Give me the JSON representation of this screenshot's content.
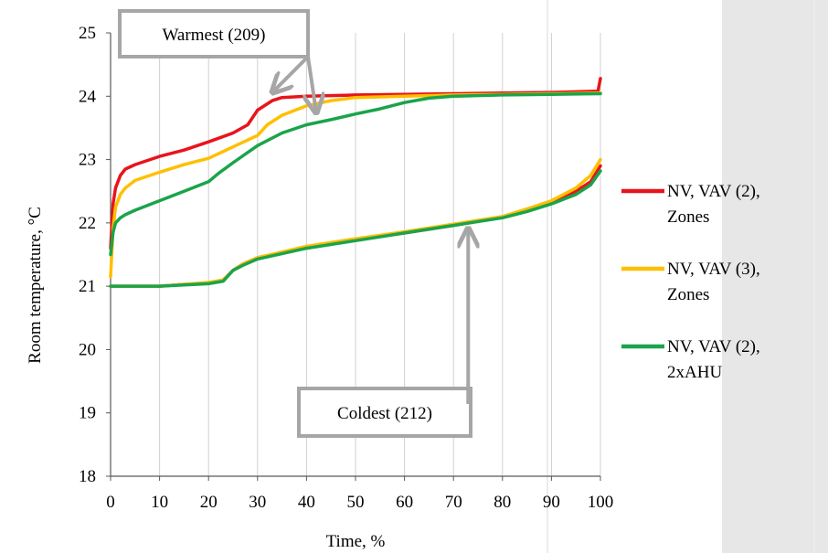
{
  "chart_data": {
    "type": "line",
    "xlabel": "Time, %",
    "ylabel": "Room temperature, °C",
    "xlim": [
      0,
      100
    ],
    "ylim": [
      18,
      25
    ],
    "xticks": [
      0,
      10,
      20,
      30,
      40,
      50,
      60,
      70,
      80,
      90,
      100
    ],
    "yticks": [
      18,
      19,
      20,
      21,
      22,
      23,
      24,
      25
    ],
    "grid": "vertical",
    "legend_position": "right",
    "series": [
      {
        "name": "NV, VAV (2), Zones",
        "color": "#e8141b",
        "groups": [
          [
            [
              0,
              21.6
            ],
            [
              0.5,
              22.3
            ],
            [
              1,
              22.55
            ],
            [
              2,
              22.75
            ],
            [
              3,
              22.85
            ],
            [
              5,
              22.92
            ],
            [
              10,
              23.05
            ],
            [
              15,
              23.15
            ],
            [
              20,
              23.28
            ],
            [
              25,
              23.42
            ],
            [
              28,
              23.55
            ],
            [
              30,
              23.78
            ],
            [
              33,
              23.93
            ],
            [
              35,
              23.98
            ],
            [
              40,
              24.0
            ],
            [
              50,
              24.02
            ],
            [
              60,
              24.03
            ],
            [
              70,
              24.04
            ],
            [
              80,
              24.05
            ],
            [
              90,
              24.06
            ],
            [
              99.5,
              24.08
            ],
            [
              100,
              24.28
            ]
          ],
          [
            [
              0,
              21.0
            ],
            [
              10,
              21.0
            ],
            [
              15,
              21.03
            ],
            [
              20,
              21.05
            ],
            [
              23,
              21.1
            ],
            [
              25,
              21.25
            ],
            [
              27,
              21.35
            ],
            [
              30,
              21.45
            ],
            [
              40,
              21.62
            ],
            [
              50,
              21.73
            ],
            [
              60,
              21.84
            ],
            [
              70,
              21.96
            ],
            [
              80,
              22.09
            ],
            [
              85,
              22.2
            ],
            [
              90,
              22.33
            ],
            [
              95,
              22.5
            ],
            [
              98,
              22.65
            ],
            [
              100,
              22.9
            ]
          ]
        ]
      },
      {
        "name": "NV, VAV (3), Zones",
        "color": "#ffbf00",
        "groups": [
          [
            [
              0,
              21.15
            ],
            [
              0.5,
              21.9
            ],
            [
              1,
              22.25
            ],
            [
              2,
              22.45
            ],
            [
              3,
              22.55
            ],
            [
              5,
              22.67
            ],
            [
              10,
              22.8
            ],
            [
              15,
              22.92
            ],
            [
              20,
              23.02
            ],
            [
              25,
              23.2
            ],
            [
              30,
              23.38
            ],
            [
              32,
              23.55
            ],
            [
              35,
              23.7
            ],
            [
              40,
              23.85
            ],
            [
              45,
              23.93
            ],
            [
              50,
              23.98
            ],
            [
              60,
              24.0
            ],
            [
              70,
              24.02
            ],
            [
              80,
              24.03
            ],
            [
              90,
              24.04
            ],
            [
              100,
              24.05
            ]
          ],
          [
            [
              0,
              21.0
            ],
            [
              10,
              21.0
            ],
            [
              15,
              21.03
            ],
            [
              20,
              21.06
            ],
            [
              23,
              21.1
            ],
            [
              25,
              21.25
            ],
            [
              27,
              21.35
            ],
            [
              30,
              21.45
            ],
            [
              40,
              21.63
            ],
            [
              50,
              21.75
            ],
            [
              60,
              21.86
            ],
            [
              70,
              21.98
            ],
            [
              80,
              22.1
            ],
            [
              85,
              22.22
            ],
            [
              90,
              22.35
            ],
            [
              95,
              22.55
            ],
            [
              98,
              22.75
            ],
            [
              100,
              23.0
            ]
          ]
        ]
      },
      {
        "name": "NV, VAV (2), 2xAHU",
        "color": "#1aa44a",
        "groups": [
          [
            [
              0,
              21.5
            ],
            [
              0.5,
              21.85
            ],
            [
              1,
              22.0
            ],
            [
              2,
              22.08
            ],
            [
              3,
              22.13
            ],
            [
              5,
              22.2
            ],
            [
              10,
              22.35
            ],
            [
              15,
              22.5
            ],
            [
              20,
              22.65
            ],
            [
              22,
              22.78
            ],
            [
              25,
              22.95
            ],
            [
              30,
              23.22
            ],
            [
              35,
              23.42
            ],
            [
              40,
              23.55
            ],
            [
              45,
              23.63
            ],
            [
              50,
              23.72
            ],
            [
              55,
              23.8
            ],
            [
              60,
              23.9
            ],
            [
              65,
              23.97
            ],
            [
              70,
              24.0
            ],
            [
              80,
              24.02
            ],
            [
              90,
              24.03
            ],
            [
              100,
              24.04
            ]
          ],
          [
            [
              0,
              21.0
            ],
            [
              10,
              21.0
            ],
            [
              15,
              21.02
            ],
            [
              20,
              21.04
            ],
            [
              23,
              21.08
            ],
            [
              25,
              21.25
            ],
            [
              27,
              21.33
            ],
            [
              30,
              21.43
            ],
            [
              40,
              21.6
            ],
            [
              50,
              21.72
            ],
            [
              60,
              21.84
            ],
            [
              70,
              21.96
            ],
            [
              80,
              22.08
            ],
            [
              85,
              22.18
            ],
            [
              90,
              22.3
            ],
            [
              95,
              22.45
            ],
            [
              98,
              22.6
            ],
            [
              100,
              22.82
            ]
          ]
        ]
      }
    ],
    "annotations": [
      {
        "label": "Warmest (209)",
        "arrow_targets": [
          [
            33,
            24.0
          ],
          [
            42,
            23.68
          ]
        ]
      },
      {
        "label": "Coldest (212)",
        "arrow_targets": [
          [
            73,
            22.0
          ]
        ]
      }
    ]
  }
}
